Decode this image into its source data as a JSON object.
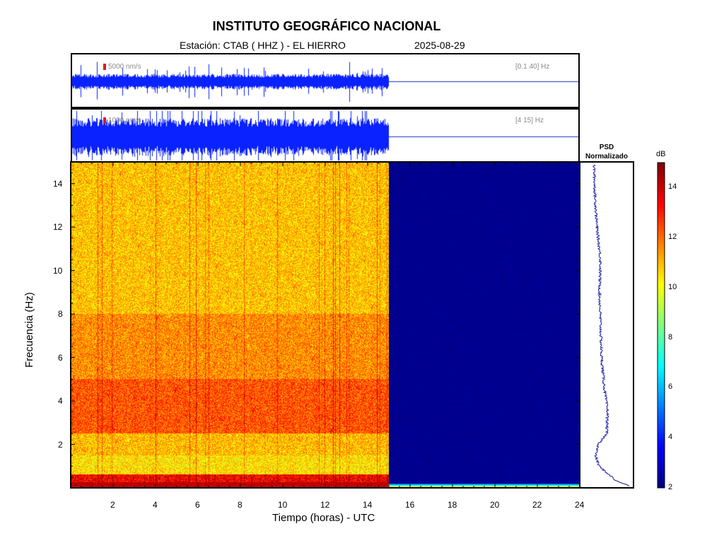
{
  "header": {
    "title": "INSTITUTO GEOGRÁFICO NACIONAL",
    "station": "Estación:  CTAB ( HHZ ) - EL HIERRO",
    "date": "2025-08-29"
  },
  "trace_top": {
    "scale": "5000 nm/s",
    "band": "[0.1 40] Hz"
  },
  "trace_mid": {
    "scale": "1000 nm/s",
    "band": "[4 15] Hz"
  },
  "psd": {
    "title": "PSD",
    "subtitle": "Normalizado"
  },
  "colorbar": {
    "unit": "dB",
    "min": 2,
    "max": 15,
    "ticks": [
      "14",
      "12",
      "10",
      "8",
      "6",
      "4",
      "2"
    ]
  },
  "chart_data": {
    "type": "heatmap",
    "xlabel": "Tiempo (horas) - UTC",
    "ylabel": "Frecuencia  (Hz)",
    "xlim": [
      0,
      24
    ],
    "ylim": [
      0,
      15
    ],
    "x_ticks": [
      "2",
      "4",
      "6",
      "8",
      "10",
      "12",
      "14",
      "16",
      "18",
      "20",
      "22",
      "24"
    ],
    "y_ticks": [
      "2",
      "4",
      "6",
      "8",
      "10",
      "12",
      "14"
    ],
    "data_end_hour": 15,
    "bands": [
      {
        "f_from": 0.0,
        "f_to": 0.6,
        "level_db": 13.5
      },
      {
        "f_from": 0.6,
        "f_to": 1.5,
        "level_db": 10.5
      },
      {
        "f_from": 1.5,
        "f_to": 2.5,
        "level_db": 11.0
      },
      {
        "f_from": 2.5,
        "f_to": 5.0,
        "level_db": 12.3
      },
      {
        "f_from": 5.0,
        "f_to": 8.0,
        "level_db": 11.6
      },
      {
        "f_from": 8.0,
        "f_to": 15.0,
        "level_db": 10.9
      }
    ],
    "empty_level_db": 2,
    "psd_curve": [
      {
        "f": 0.1,
        "v": 0.95
      },
      {
        "f": 0.3,
        "v": 0.7
      },
      {
        "f": 0.6,
        "v": 0.55
      },
      {
        "f": 1.0,
        "v": 0.35
      },
      {
        "f": 1.5,
        "v": 0.28
      },
      {
        "f": 2.0,
        "v": 0.34
      },
      {
        "f": 2.5,
        "v": 0.5
      },
      {
        "f": 3.5,
        "v": 0.52
      },
      {
        "f": 4.5,
        "v": 0.46
      },
      {
        "f": 6.0,
        "v": 0.4
      },
      {
        "f": 7.5,
        "v": 0.38
      },
      {
        "f": 9.0,
        "v": 0.36
      },
      {
        "f": 10.5,
        "v": 0.38
      },
      {
        "f": 12.0,
        "v": 0.31
      },
      {
        "f": 13.5,
        "v": 0.27
      },
      {
        "f": 15.0,
        "v": 0.25
      }
    ]
  }
}
